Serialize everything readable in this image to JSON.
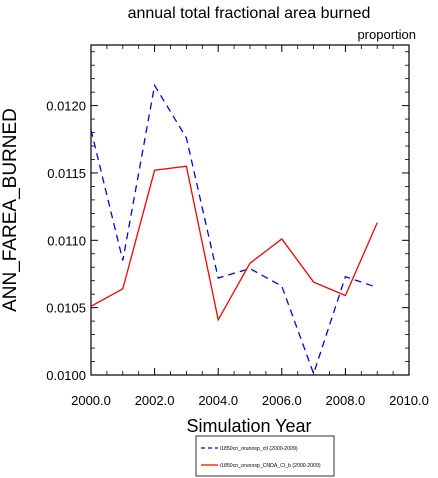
{
  "chart_data": {
    "type": "line",
    "title": "annual total fractional area burned",
    "subtitle": "proportion",
    "xlabel": "Simulation Year",
    "ylabel": "ANN_FAREA_BURNED",
    "xlim": [
      2000.0,
      2010.0
    ],
    "ylim": [
      0.01,
      0.01245
    ],
    "x_ticks": [
      "2000.0",
      "2002.0",
      "2004.0",
      "2006.0",
      "2008.0",
      "2010.0"
    ],
    "x_tick_values": [
      2000,
      2002,
      2004,
      2006,
      2008,
      2010
    ],
    "y_ticks": [
      "0.0100",
      "0.0105",
      "0.0110",
      "0.0115",
      "0.0120"
    ],
    "y_tick_values": [
      0.01,
      0.0105,
      0.011,
      0.0115,
      0.012
    ],
    "grid": false,
    "legend_position": "bottom",
    "x": [
      2000,
      2001,
      2002,
      2003,
      2004,
      2005,
      2006,
      2007,
      2008,
      2009
    ],
    "series": [
      {
        "name": "i1850cn_orunosp_ctl (2000-2009)",
        "color": "#0000ff",
        "dash": "dashed",
        "values": [
          0.01182,
          0.01085,
          0.01215,
          0.01176,
          0.01072,
          0.01079,
          0.01066,
          0.01001,
          0.01073,
          0.01065
        ]
      },
      {
        "name": "i1850cn_orunosp_CNDA_Cl_b (2000-2009)",
        "color": "#ff0000",
        "dash": "solid",
        "values": [
          0.01051,
          0.01064,
          0.01152,
          0.01155,
          0.01041,
          0.01083,
          0.01101,
          0.01069,
          0.01059,
          0.01113
        ]
      }
    ]
  }
}
